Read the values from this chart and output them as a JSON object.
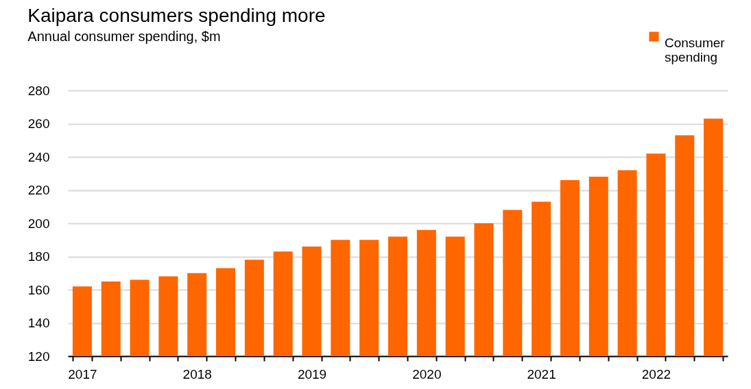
{
  "chart_data": {
    "type": "bar",
    "title": "Kaipara consumers spending more",
    "subtitle": "Annual consumer spending, $m",
    "categories": [
      "2017",
      null,
      null,
      null,
      "2018",
      null,
      null,
      null,
      "2019",
      null,
      null,
      null,
      "2020",
      null,
      null,
      null,
      "2021",
      null,
      null,
      null,
      "2022",
      null,
      null
    ],
    "series": [
      {
        "name": "Consumer spending",
        "color": "#ff6600",
        "values": [
          162,
          165,
          166,
          168,
          170,
          173,
          178,
          183,
          186,
          190,
          190,
          192,
          196,
          192,
          200,
          208,
          213,
          226,
          228,
          232,
          242,
          253,
          263
        ]
      }
    ],
    "ylim": [
      120,
      280
    ],
    "yticks": [
      120,
      140,
      160,
      180,
      200,
      220,
      240,
      260,
      280
    ],
    "grid": "y",
    "legend": "top right"
  }
}
